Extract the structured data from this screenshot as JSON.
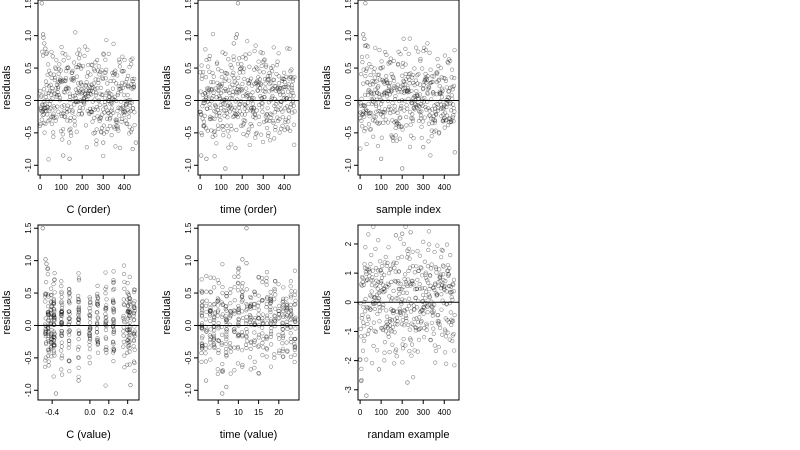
{
  "chart_data": [
    {
      "type": "scatter",
      "id": "p1",
      "xlabel": "C (order)",
      "ylabel": "residuals",
      "xlim": [
        -10,
        470
      ],
      "ylim": [
        -1.15,
        1.55
      ],
      "xticks": [
        0,
        100,
        200,
        300,
        400
      ],
      "xtick_labels": [
        "0",
        "100",
        "200",
        "300",
        "400"
      ],
      "yticks": [
        -1.0,
        -0.5,
        0.0,
        0.5,
        1.0,
        1.5
      ],
      "ytick_labels": [
        "-1.0",
        "-0.5",
        "0.0",
        "0.5",
        "1.0",
        "1.5"
      ],
      "hline": 0,
      "n": 450,
      "seed": 11,
      "xmode": "index",
      "points": [
        {
          "x": 8,
          "y": 1.5
        },
        {
          "x": 14,
          "y": 1.02
        },
        {
          "x": 16,
          "y": 0.97
        },
        {
          "x": 20,
          "y": 0.88
        },
        {
          "x": 25,
          "y": 0.8
        },
        {
          "x": 30,
          "y": 0.72
        },
        {
          "x": 60,
          "y": 0.68
        },
        {
          "x": 185,
          "y": 0.55
        },
        {
          "x": 110,
          "y": -0.85
        },
        {
          "x": 140,
          "y": -0.9
        },
        {
          "x": 300,
          "y": -0.65
        },
        {
          "x": 440,
          "y": -0.75
        },
        {
          "x": 455,
          "y": -0.65
        }
      ]
    },
    {
      "type": "scatter",
      "id": "p2",
      "xlabel": "time (order)",
      "ylabel": "residuals",
      "xlim": [
        -10,
        470
      ],
      "ylim": [
        -1.15,
        1.55
      ],
      "xticks": [
        0,
        100,
        200,
        300,
        400
      ],
      "xtick_labels": [
        "0",
        "100",
        "200",
        "300",
        "400"
      ],
      "yticks": [
        -1.0,
        -0.5,
        0.0,
        0.5,
        1.0,
        1.5
      ],
      "ytick_labels": [
        "-1.0",
        "-0.5",
        "0.0",
        "0.5",
        "1.0",
        "1.5"
      ],
      "hline": 0,
      "n": 450,
      "seed": 23,
      "xmode": "index",
      "points": [
        {
          "x": 180,
          "y": 1.5
        },
        {
          "x": 175,
          "y": 1.02
        },
        {
          "x": 170,
          "y": 0.97
        },
        {
          "x": 160,
          "y": 0.88
        },
        {
          "x": 120,
          "y": 0.72
        },
        {
          "x": 30,
          "y": -0.9
        },
        {
          "x": 120,
          "y": -1.05
        },
        {
          "x": 5,
          "y": -0.85
        }
      ]
    },
    {
      "type": "scatter",
      "id": "p3",
      "xlabel": "sample index",
      "ylabel": "residuals",
      "xlim": [
        -10,
        470
      ],
      "ylim": [
        -1.15,
        1.55
      ],
      "xticks": [
        0,
        100,
        200,
        300,
        400
      ],
      "xtick_labels": [
        "0",
        "100",
        "200",
        "300",
        "400"
      ],
      "yticks": [
        -1.0,
        -0.5,
        0.0,
        0.5,
        1.0,
        1.5
      ],
      "ytick_labels": [
        "-1.0",
        "-0.5",
        "0.0",
        "0.5",
        "1.0",
        "1.5"
      ],
      "hline": 0,
      "n": 450,
      "seed": 37,
      "xmode": "index",
      "points": [
        {
          "x": 25,
          "y": 1.5
        },
        {
          "x": 15,
          "y": 1.02
        },
        {
          "x": 20,
          "y": 0.95
        },
        {
          "x": 30,
          "y": 0.85
        },
        {
          "x": 200,
          "y": -1.05
        },
        {
          "x": 100,
          "y": -0.9
        },
        {
          "x": 300,
          "y": -0.72
        },
        {
          "x": 450,
          "y": -0.8
        }
      ]
    },
    {
      "type": "scatter",
      "id": "p4",
      "xlabel": "C (value)",
      "ylabel": "residuals",
      "xlim": [
        -0.55,
        0.52
      ],
      "ylim": [
        -1.15,
        1.55
      ],
      "xticks": [
        -0.4,
        0.0,
        0.2,
        0.4
      ],
      "xtick_labels": [
        "-0.4",
        "0.0",
        "0.2",
        "0.4"
      ],
      "yticks": [
        -1.0,
        -0.5,
        0.0,
        0.5,
        1.0,
        1.5
      ],
      "ytick_labels": [
        "-1.0",
        "-0.5",
        "0.0",
        "0.5",
        "1.0",
        "1.5"
      ],
      "hline": 0,
      "n": 450,
      "seed": 53,
      "xmode": "clusters",
      "clusters": [
        -0.47,
        -0.44,
        -0.41,
        -0.38,
        -0.3,
        -0.22,
        -0.12,
        0.0,
        0.08,
        0.17,
        0.25,
        0.36,
        0.4,
        0.42,
        0.47
      ],
      "points": [
        {
          "x": -0.5,
          "y": 1.5
        },
        {
          "x": -0.47,
          "y": 1.02
        },
        {
          "x": -0.46,
          "y": 0.95
        },
        {
          "x": -0.45,
          "y": 0.87
        },
        {
          "x": -0.36,
          "y": -1.05
        },
        {
          "x": -0.12,
          "y": -0.85
        },
        {
          "x": 0.43,
          "y": -0.92
        }
      ]
    },
    {
      "type": "scatter",
      "id": "p5",
      "xlabel": "time (value)",
      "ylabel": "residuals",
      "xlim": [
        0,
        25
      ],
      "ylim": [
        -1.15,
        1.55
      ],
      "xticks": [
        5,
        10,
        15,
        20
      ],
      "xtick_labels": [
        "5",
        "10",
        "15",
        "20"
      ],
      "yticks": [
        -1.0,
        -0.5,
        0.0,
        0.5,
        1.0,
        1.5
      ],
      "ytick_labels": [
        "-1.0",
        "-0.5",
        "0.0",
        "0.5",
        "1.0",
        "1.5"
      ],
      "hline": 0,
      "n": 450,
      "seed": 71,
      "xmode": "clusters",
      "clusters": [
        1,
        2,
        3,
        4,
        5,
        6,
        7,
        8,
        9,
        10,
        11,
        12,
        13,
        14,
        15,
        16,
        17,
        18,
        19,
        20,
        21,
        22,
        23,
        24
      ],
      "points": [
        {
          "x": 12,
          "y": 1.5
        },
        {
          "x": 11,
          "y": 1.02
        },
        {
          "x": 12,
          "y": 0.96
        },
        {
          "x": 10,
          "y": 0.87
        },
        {
          "x": 7,
          "y": -0.95
        },
        {
          "x": 6,
          "y": -1.05
        },
        {
          "x": 2,
          "y": -0.85
        }
      ]
    },
    {
      "type": "scatter",
      "id": "p6",
      "xlabel": "randam example",
      "ylabel": "residuals",
      "xlim": [
        -10,
        470
      ],
      "ylim": [
        -3.35,
        2.65
      ],
      "xticks": [
        0,
        100,
        200,
        300,
        400
      ],
      "xtick_labels": [
        "0",
        "100",
        "200",
        "300",
        "400"
      ],
      "yticks": [
        -3,
        -2,
        -1,
        0,
        1,
        2
      ],
      "ytick_labels": [
        "-3",
        "-2",
        "-1",
        "0",
        "1",
        "2"
      ],
      "hline": 0,
      "n": 450,
      "seed": 97,
      "xmode": "index",
      "ydist": "normal",
      "points": [
        {
          "x": 30,
          "y": -3.2
        },
        {
          "x": 5,
          "y": -2.7
        },
        {
          "x": 225,
          "y": -2.75
        },
        {
          "x": 90,
          "y": -2.3
        },
        {
          "x": 200,
          "y": 2.35
        },
        {
          "x": 240,
          "y": 2.4
        },
        {
          "x": 170,
          "y": 2.3
        }
      ]
    }
  ]
}
